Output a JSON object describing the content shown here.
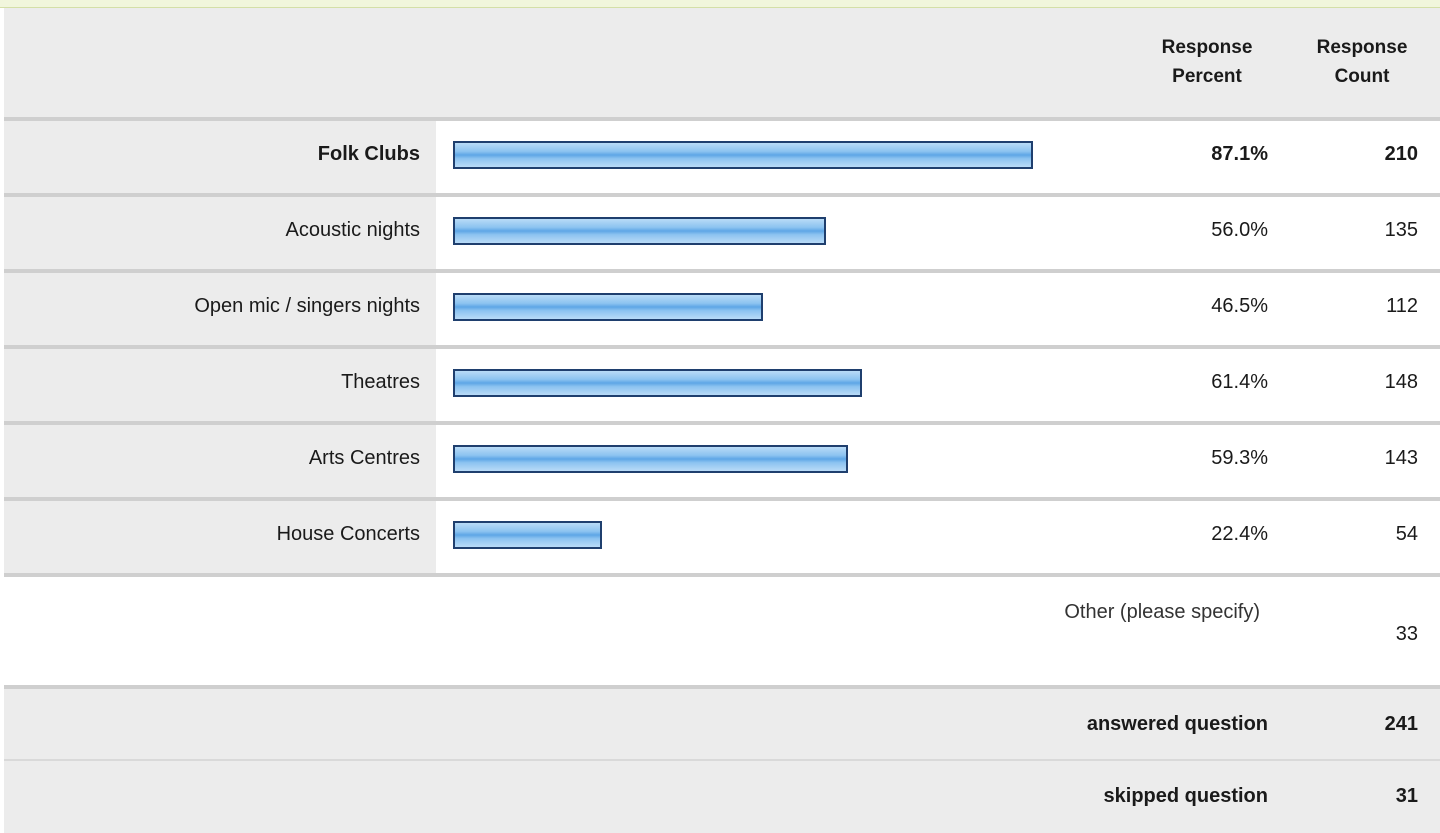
{
  "header": {
    "percent_label_line1": "Response",
    "percent_label_line2": "Percent",
    "count_label_line1": "Response",
    "count_label_line2": "Count"
  },
  "rows": [
    {
      "label": "Folk Clubs",
      "percent_text": "87.1%",
      "percent": 87.1,
      "count": "210",
      "bold": true
    },
    {
      "label": "Acoustic nights",
      "percent_text": "56.0%",
      "percent": 56.0,
      "count": "135",
      "bold": false
    },
    {
      "label": "Open mic / singers nights",
      "percent_text": "46.5%",
      "percent": 46.5,
      "count": "112",
      "bold": false
    },
    {
      "label": "Theatres",
      "percent_text": "61.4%",
      "percent": 61.4,
      "count": "148",
      "bold": false
    },
    {
      "label": "Arts Centres",
      "percent_text": "59.3%",
      "percent": 59.3,
      "count": "143",
      "bold": false
    },
    {
      "label": "House Concerts",
      "percent_text": "22.4%",
      "percent": 22.4,
      "count": "54",
      "bold": false
    }
  ],
  "other": {
    "label": "Other (please specify)",
    "count": "33"
  },
  "summary": {
    "answered_label": "answered question",
    "answered_count": "241",
    "skipped_label": "skipped question",
    "skipped_count": "31"
  },
  "colors": {
    "bar_border": "#1f3f6e",
    "bar_fill": "#8cc3f0",
    "header_bg": "#ececec",
    "top_strip": "#f1f6dc"
  }
}
